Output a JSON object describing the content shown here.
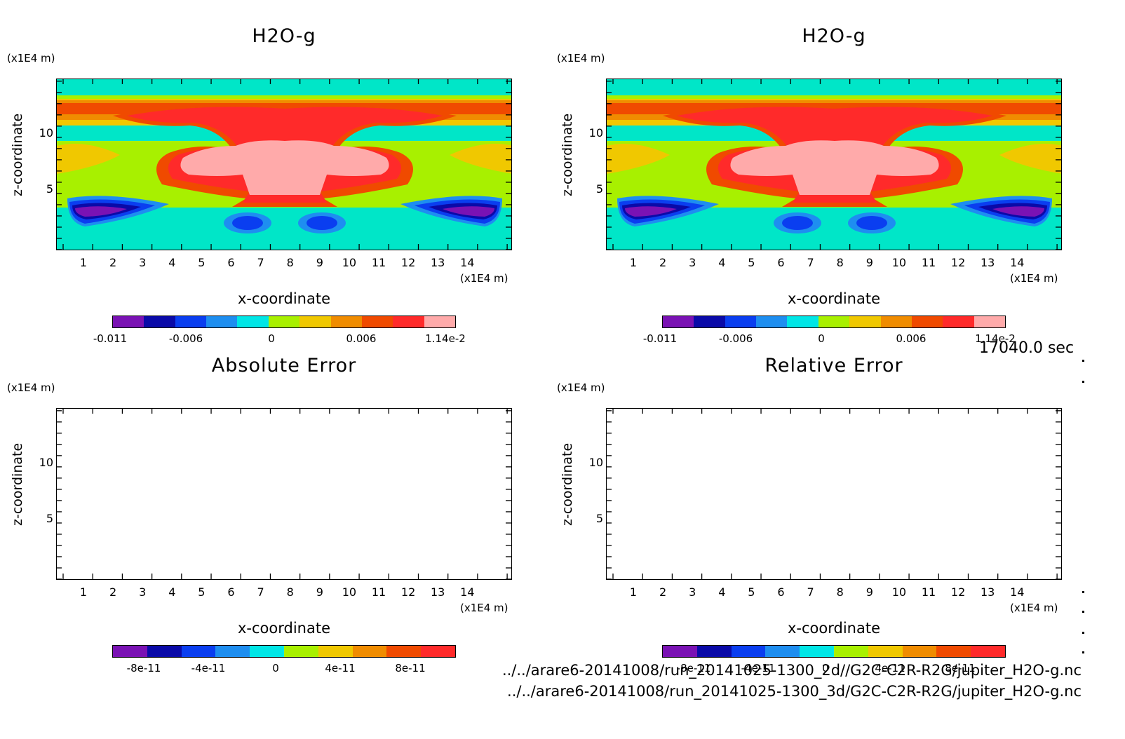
{
  "panels": [
    {
      "title": "H2O-g",
      "z_unit": "(x1E4 m)",
      "z_label": "z-coordinate",
      "x_unit": "(x1E4 m)",
      "x_label": "x-coordinate",
      "y_ticks": [
        "5",
        "10"
      ],
      "x_ticks": [
        "1",
        "2",
        "3",
        "4",
        "5",
        "6",
        "7",
        "8",
        "9",
        "10",
        "11",
        "12",
        "13",
        "14"
      ],
      "colorbar_labels": [
        "-0.011",
        "-0.006",
        "0",
        "0.006",
        "1.14e-2"
      ],
      "filled": true
    },
    {
      "title": "H2O-g",
      "z_unit": "(x1E4 m)",
      "z_label": "z-coordinate",
      "x_unit": "(x1E4 m)",
      "x_label": "x-coordinate",
      "y_ticks": [
        "5",
        "10"
      ],
      "x_ticks": [
        "1",
        "2",
        "3",
        "4",
        "5",
        "6",
        "7",
        "8",
        "9",
        "10",
        "11",
        "12",
        "13",
        "14"
      ],
      "colorbar_labels": [
        "-0.011",
        "-0.006",
        "0",
        "0.006",
        "1.14e-2"
      ],
      "filled": true
    },
    {
      "title": "Absolute Error",
      "z_unit": "(x1E4 m)",
      "z_label": "z-coordinate",
      "x_unit": "(x1E4 m)",
      "x_label": "x-coordinate",
      "y_ticks": [
        "5",
        "10"
      ],
      "x_ticks": [
        "1",
        "2",
        "3",
        "4",
        "5",
        "6",
        "7",
        "8",
        "9",
        "10",
        "11",
        "12",
        "13",
        "14"
      ],
      "colorbar_labels": [
        "-8e-11",
        "-4e-11",
        "0",
        "4e-11",
        "8e-11"
      ],
      "filled": false
    },
    {
      "title": "Relative Error",
      "z_unit": "(x1E4 m)",
      "z_label": "z-coordinate",
      "x_unit": "(x1E4 m)",
      "x_label": "x-coordinate",
      "y_ticks": [
        "5",
        "10"
      ],
      "x_ticks": [
        "1",
        "2",
        "3",
        "4",
        "5",
        "6",
        "7",
        "8",
        "9",
        "10",
        "11",
        "12",
        "13",
        "14"
      ],
      "colorbar_labels": [
        "-8e-11",
        "-4e-11",
        "0",
        "4e-11",
        "8e-11"
      ],
      "filled": false
    }
  ],
  "colorbar_colors": [
    "#7a12b4",
    "#0a0aa8",
    "#0a3ef0",
    "#1e8ef0",
    "#00e6e6",
    "#a8f000",
    "#f0c800",
    "#f08c00",
    "#f04a00",
    "#ff2a2a",
    "#ffaaaa"
  ],
  "time_label": "17040.0 sec",
  "file_paths": [
    "../../arare6-20141008/run_20141025-1300_2d//G2C-C2R-R2G/jupiter_H2O-g.nc",
    "../../arare6-20141008/run_20141025-1300_3d/G2C-C2R-R2G/jupiter_H2O-g.nc"
  ],
  "chart_data": [
    {
      "type": "heatmap",
      "title": "H2O-g",
      "xlabel": "x-coordinate",
      "ylabel": "z-coordinate",
      "x_unit": "(x1E4 m)",
      "z_unit": "(x1E4 m)",
      "xlim": [
        0,
        15
      ],
      "ylim": [
        0,
        15
      ],
      "colorbar": {
        "min": -0.011,
        "max": 0.0114,
        "tick_labels": [
          "-0.011",
          "-0.006",
          "0",
          "0.006",
          "1.14e-2"
        ]
      }
    },
    {
      "type": "heatmap",
      "title": "H2O-g",
      "xlabel": "x-coordinate",
      "ylabel": "z-coordinate",
      "x_unit": "(x1E4 m)",
      "z_unit": "(x1E4 m)",
      "xlim": [
        0,
        15
      ],
      "ylim": [
        0,
        15
      ],
      "colorbar": {
        "min": -0.011,
        "max": 0.0114,
        "tick_labels": [
          "-0.011",
          "-0.006",
          "0",
          "0.006",
          "1.14e-2"
        ]
      }
    },
    {
      "type": "heatmap",
      "title": "Absolute Error",
      "xlabel": "x-coordinate",
      "ylabel": "z-coordinate",
      "x_unit": "(x1E4 m)",
      "z_unit": "(x1E4 m)",
      "xlim": [
        0,
        15
      ],
      "ylim": [
        0,
        15
      ],
      "colorbar": {
        "tick_labels": [
          "-8e-11",
          "-4e-11",
          "0",
          "4e-11",
          "8e-11"
        ]
      }
    },
    {
      "type": "heatmap",
      "title": "Relative Error",
      "xlabel": "x-coordinate",
      "ylabel": "z-coordinate",
      "x_unit": "(x1E4 m)",
      "z_unit": "(x1E4 m)",
      "xlim": [
        0,
        15
      ],
      "ylim": [
        0,
        15
      ],
      "colorbar": {
        "tick_labels": [
          "-8e-11",
          "-4e-11",
          "0",
          "4e-11",
          "8e-11"
        ]
      }
    }
  ]
}
